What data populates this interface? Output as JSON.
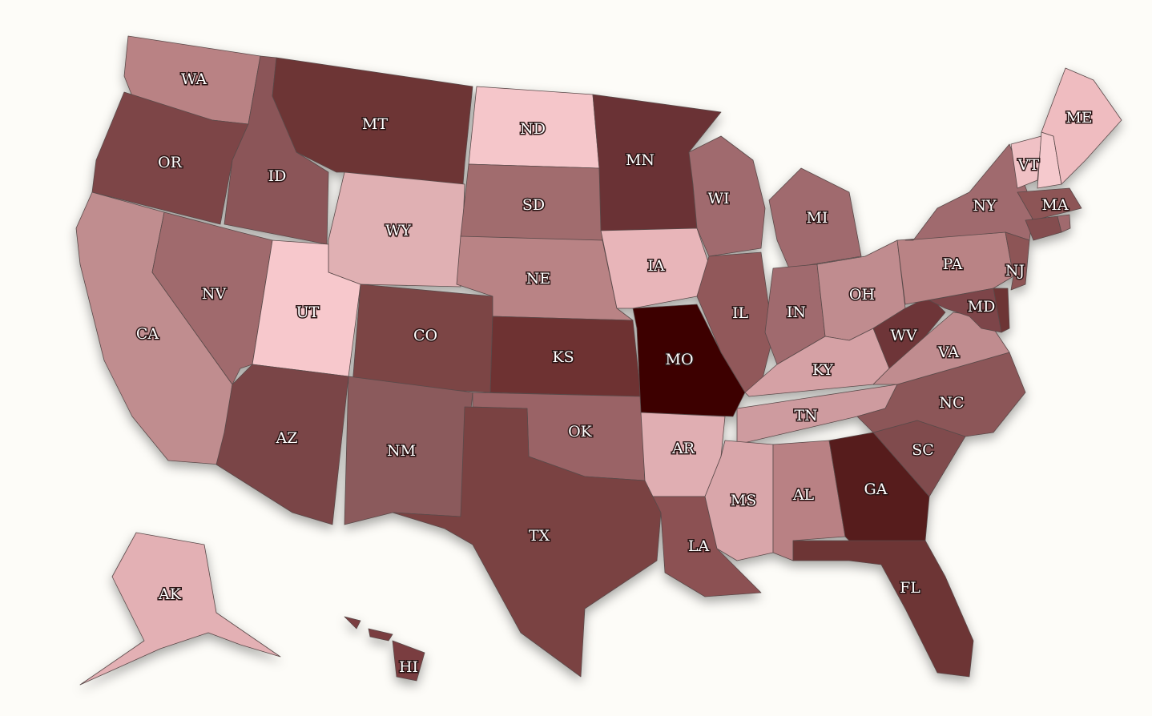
{
  "map": {
    "states": [
      {
        "label": "WA",
        "color": "#b98284"
      },
      {
        "label": "OR",
        "color": "#7d4547"
      },
      {
        "label": "CA",
        "color": "#c08d8f"
      },
      {
        "label": "NV",
        "color": "#a06b6d"
      },
      {
        "label": "ID",
        "color": "#8b5558"
      },
      {
        "label": "MT",
        "color": "#6d3535"
      },
      {
        "label": "WY",
        "color": "#e0b0b3"
      },
      {
        "label": "UT",
        "color": "#f7c8cc"
      },
      {
        "label": "CO",
        "color": "#7b4445"
      },
      {
        "label": "AZ",
        "color": "#7a4446"
      },
      {
        "label": "NM",
        "color": "#8b5a5b"
      },
      {
        "label": "ND",
        "color": "#f5c6ca"
      },
      {
        "label": "SD",
        "color": "#a16c6e"
      },
      {
        "label": "NE",
        "color": "#b98385"
      },
      {
        "label": "KS",
        "color": "#6e3031"
      },
      {
        "label": "OK",
        "color": "#9a6466"
      },
      {
        "label": "TX",
        "color": "#7a4243"
      },
      {
        "label": "MN",
        "color": "#6b3234"
      },
      {
        "label": "IA",
        "color": "#e8b5b9"
      },
      {
        "label": "MO",
        "color": "#3c0504"
      },
      {
        "label": "AR",
        "color": "#e0aeb2"
      },
      {
        "label": "LA",
        "color": "#8c5153"
      },
      {
        "label": "WI",
        "color": "#a06b6e"
      },
      {
        "label": "IL",
        "color": "#91585a"
      },
      {
        "label": "MI",
        "color": "#a06b6e"
      },
      {
        "label": "IN",
        "color": "#a06b6e"
      },
      {
        "label": "OH",
        "color": "#c08c8f"
      },
      {
        "label": "KY",
        "color": "#d5a1a5"
      },
      {
        "label": "TN",
        "color": "#ce9b9f"
      },
      {
        "label": "MS",
        "color": "#d9a6aa"
      },
      {
        "label": "AL",
        "color": "#b98184"
      },
      {
        "label": "GA",
        "color": "#561b1a"
      },
      {
        "label": "FL",
        "color": "#6d3434"
      },
      {
        "label": "SC",
        "color": "#804c4e"
      },
      {
        "label": "NC",
        "color": "#8c5658"
      },
      {
        "label": "VA",
        "color": "#c08c8f"
      },
      {
        "label": "WV",
        "color": "#6e3637"
      },
      {
        "label": "PA",
        "color": "#b98385"
      },
      {
        "label": "NY",
        "color": "#a06b6e"
      },
      {
        "label": "MD",
        "color": "#7d4548"
      },
      {
        "color": "#6d3535"
      },
      {
        "label": "NJ",
        "color": "#8d5557"
      },
      {
        "label": "VT",
        "color": "#f0c1c5"
      },
      {
        "color": "#f5c9cd"
      },
      {
        "label": "ME",
        "color": "#efbcc0"
      },
      {
        "label": "MA",
        "color": "#8d5557"
      },
      {
        "color": "#844e50"
      },
      {
        "color": "#a06b6e"
      },
      {
        "label": "AK",
        "color": "#e3b0b4"
      },
      {
        "label": "HI",
        "color": "#7a3e40"
      }
    ]
  }
}
